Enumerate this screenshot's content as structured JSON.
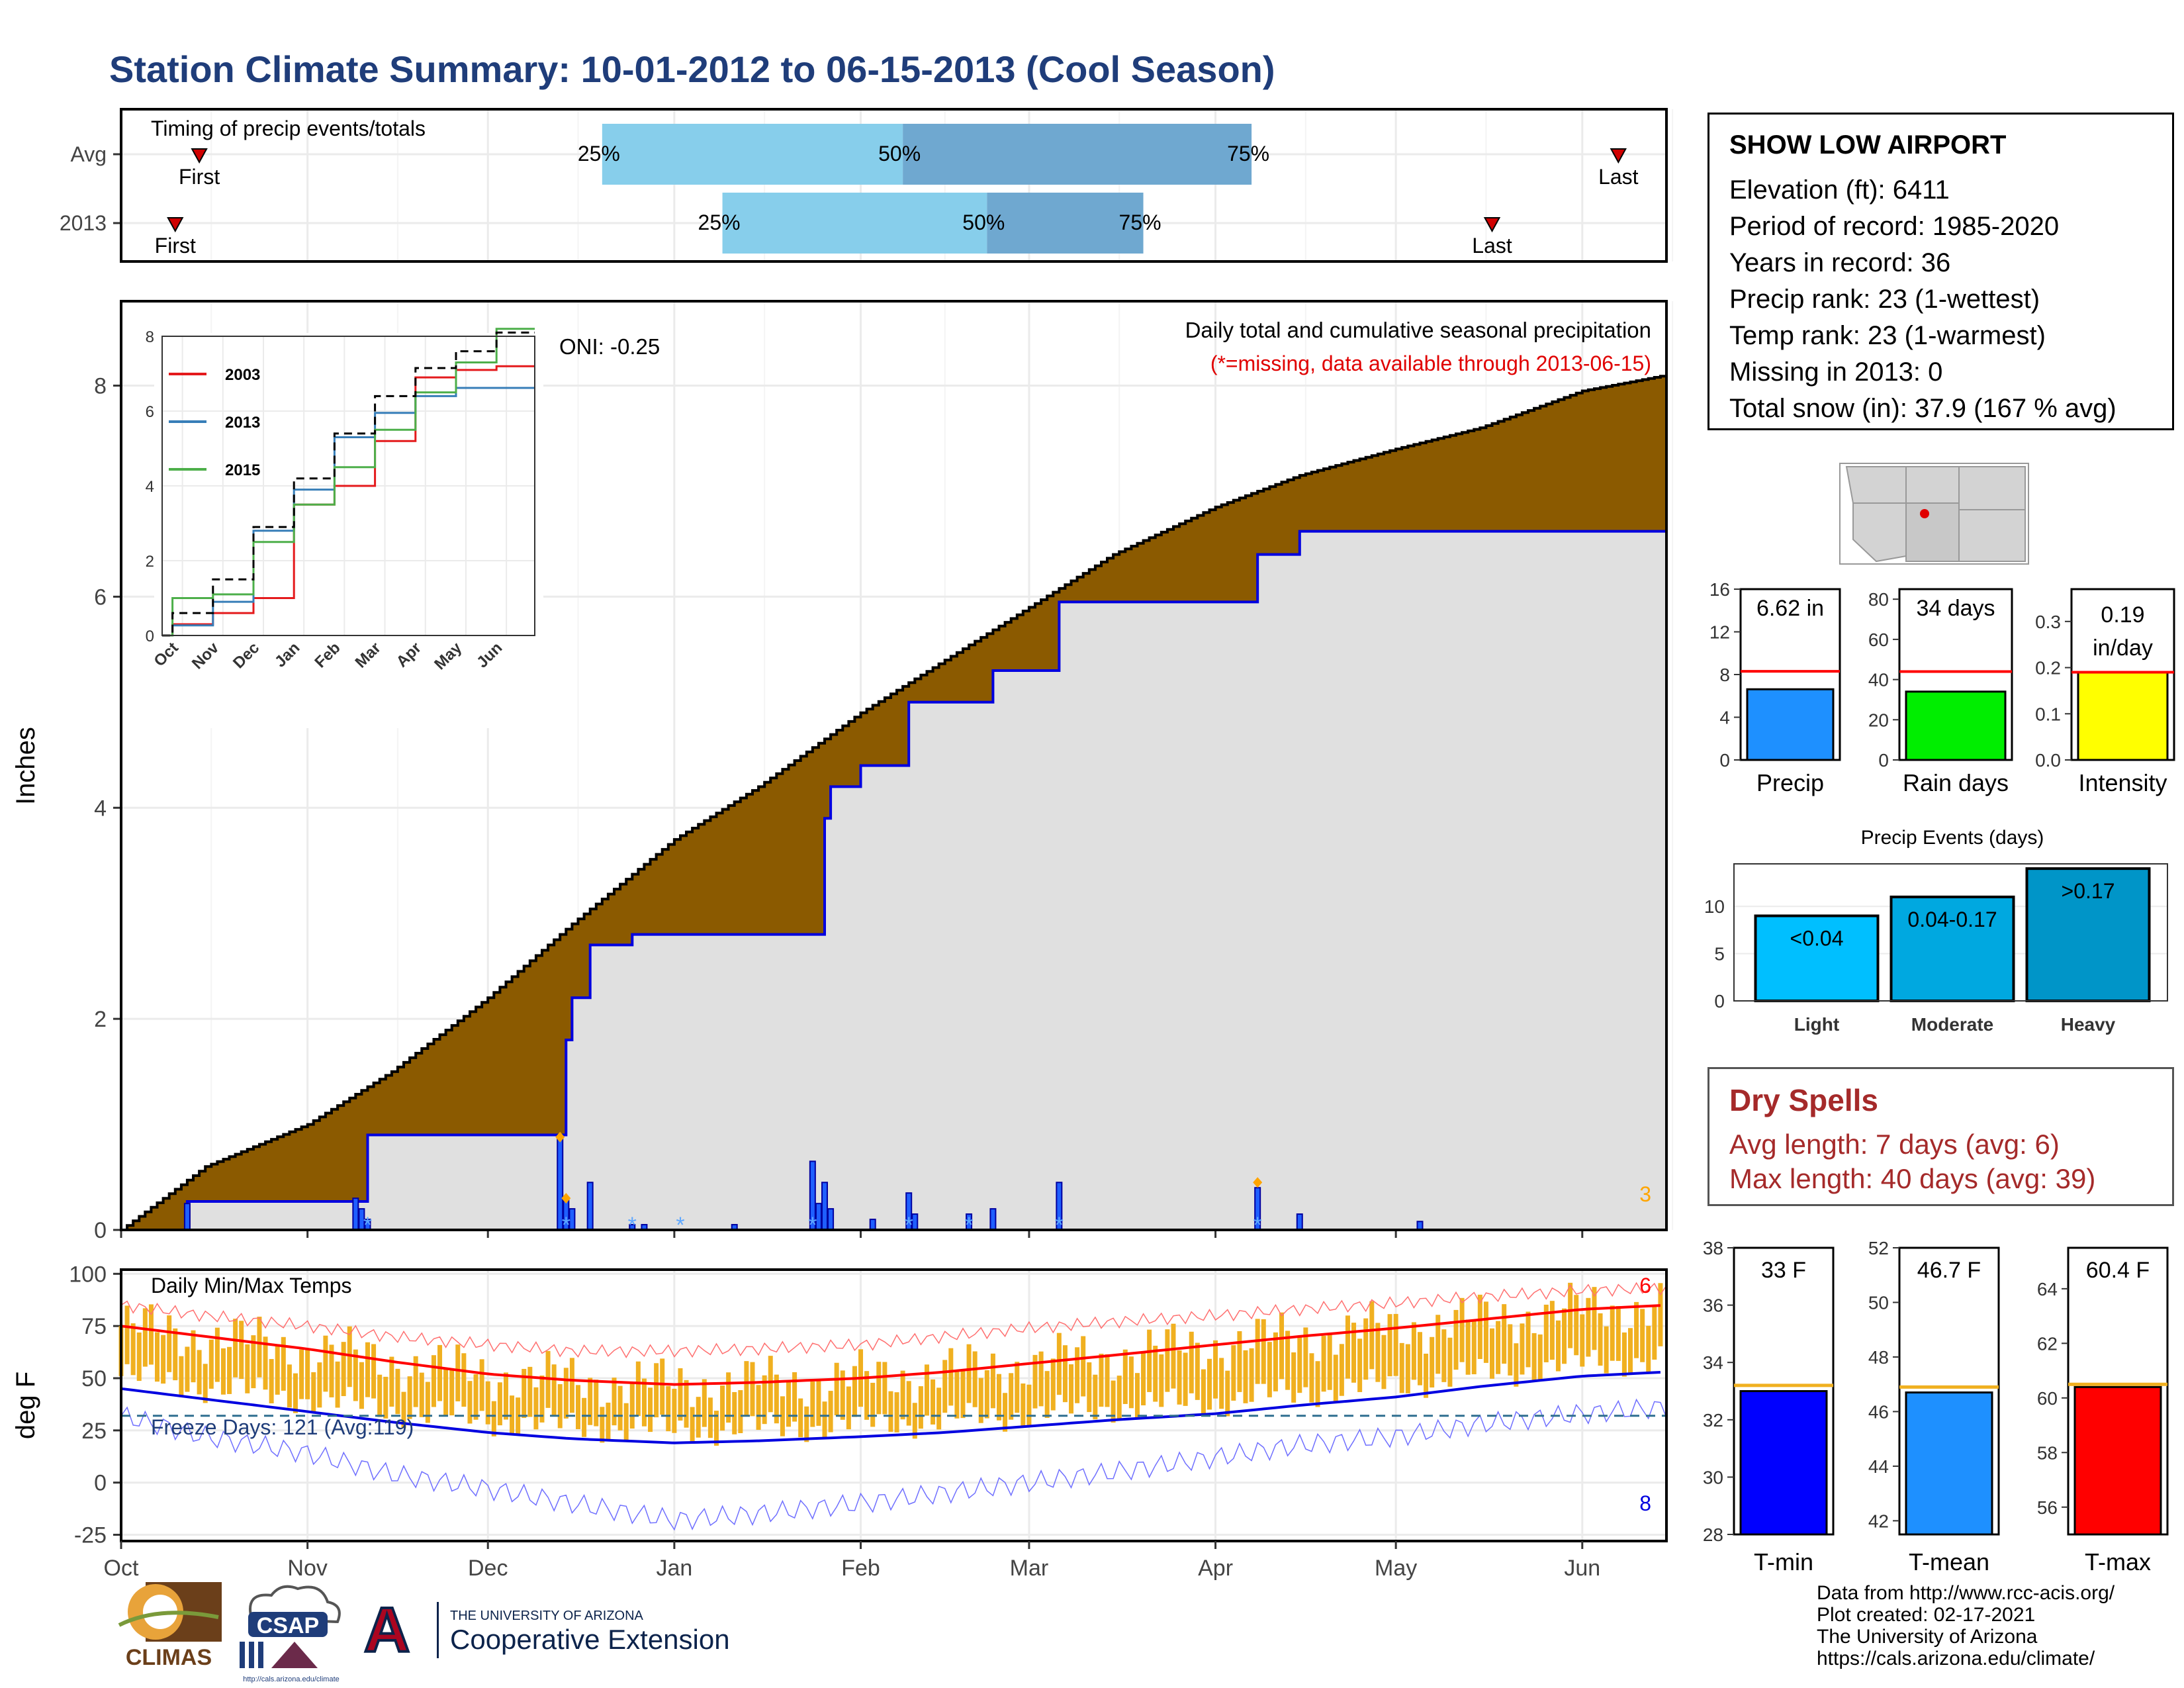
{
  "title": "Station Climate Summary: 10-01-2012 to 06-15-2013 (Cool Season)",
  "timing": {
    "label": "Timing of precip events/totals",
    "rows": [
      {
        "name": "Avg",
        "first": "First",
        "last": "Last",
        "p25": "25%",
        "p50": "50%",
        "p75": "75%"
      },
      {
        "name": "2013",
        "first": "First",
        "last": "Last",
        "p25": "25%",
        "p50": "50%",
        "p75": "75%"
      }
    ]
  },
  "station": {
    "name": "SHOW LOW AIRPORT",
    "lines": [
      "Elevation (ft): 6411",
      "Period of record: 1985-2020",
      "Years in record: 36",
      "Precip rank: 23 (1-wettest)",
      "Temp rank: 23 (1-warmest)",
      "Missing in 2013: 0",
      "Total snow (in): 37.9 (167 % avg)"
    ]
  },
  "precip_panel": {
    "ylabel": "Inches",
    "oni": "ONI: -0.25",
    "desc": "Daily total and cumulative seasonal precipitation",
    "missing_note": "(*=missing, data available through 2013-06-15)",
    "corner_count": "3",
    "inset_legend": [
      "2003",
      "2013",
      "2015"
    ],
    "inset_months": [
      "Oct",
      "Nov",
      "Dec",
      "Jan",
      "Feb",
      "Mar",
      "Apr",
      "May",
      "Jun"
    ]
  },
  "temp_panel": {
    "ylabel": "deg F",
    "title": "Daily Min/Max Temps",
    "freeze": "Freeze Days: 121 (Avg:119)",
    "count_high": "6",
    "count_low": "8"
  },
  "months": [
    "Oct",
    "Nov",
    "Dec",
    "Jan",
    "Feb",
    "Mar",
    "Apr",
    "May",
    "Jun"
  ],
  "mini_bars": [
    {
      "label": "Precip",
      "value_text": "6.62 in"
    },
    {
      "label": "Rain days",
      "value_text": "34 days"
    },
    {
      "label": "Intensity",
      "value_text": "0.19 in/day"
    }
  ],
  "events": {
    "title": "Precip Events (days)",
    "bars": [
      {
        "label": "Light",
        "range": "<0.04"
      },
      {
        "label": "Moderate",
        "range": "0.04-0.17"
      },
      {
        "label": "Heavy",
        "range": ">0.17"
      }
    ]
  },
  "dry_spells": {
    "title": "Dry Spells",
    "avg": "Avg length: 7 days (avg: 6)",
    "max": "Max length: 40 days (avg: 39)"
  },
  "temp_bars": [
    {
      "label": "T-min",
      "value_text": "33 F"
    },
    {
      "label": "T-mean",
      "value_text": "46.7 F"
    },
    {
      "label": "T-max",
      "value_text": "60.4 F"
    }
  ],
  "footer": [
    "Data from http://www.rcc-acis.org/",
    "Plot created: 02-17-2021",
    "The University of Arizona",
    "https://cals.arizona.edu/climate/"
  ],
  "logos": {
    "climas": "CLIMAS",
    "csap": "CSAP",
    "csap_url": "http://cals.arizona.edu/climate",
    "ua_letter": "A",
    "ua_top": "THE UNIVERSITY OF ARIZONA",
    "ua_bottom": "Cooperative Extension"
  },
  "chart_data": [
    {
      "type": "bar",
      "title": "Timing of precip events/totals",
      "categories": [
        "Avg",
        "2013"
      ],
      "series": [
        {
          "name": "First",
          "values": [
            "2012-10-14",
            "2012-10-10"
          ]
        },
        {
          "name": "25%",
          "values": [
            "2012-12-20",
            "2013-01-09"
          ]
        },
        {
          "name": "50%",
          "values": [
            "2013-02-08",
            "2013-02-22"
          ]
        },
        {
          "name": "75%",
          "values": [
            "2013-04-07",
            "2013-03-20"
          ]
        },
        {
          "name": "Last",
          "values": [
            "2013-06-07",
            "2013-05-17"
          ]
        }
      ]
    },
    {
      "type": "area",
      "title": "Daily total and cumulative seasonal precipitation",
      "ylabel": "Inches",
      "ylim": [
        0,
        8.8
      ],
      "avg_cumulative": {
        "x": [
          "2012-10-01",
          "2012-10-15",
          "2012-11-01",
          "2012-11-15",
          "2012-12-01",
          "2012-12-15",
          "2013-01-01",
          "2013-01-15",
          "2013-02-01",
          "2013-02-15",
          "2013-03-01",
          "2013-03-15",
          "2013-04-01",
          "2013-04-15",
          "2013-05-01",
          "2013-05-15",
          "2013-06-01",
          "2013-06-15"
        ],
        "y": [
          0,
          0.6,
          1.0,
          1.5,
          2.2,
          2.9,
          3.7,
          4.2,
          4.9,
          5.4,
          5.9,
          6.4,
          6.85,
          7.15,
          7.4,
          7.6,
          7.95,
          8.1
        ]
      },
      "obs_cumulative": {
        "x": [
          "2012-10-01",
          "2012-10-12",
          "2012-11-09",
          "2012-11-11",
          "2012-12-13",
          "2012-12-14",
          "2012-12-15",
          "2012-12-18",
          "2012-12-25",
          "2013-01-11",
          "2013-01-26",
          "2013-01-27",
          "2013-02-01",
          "2013-02-09",
          "2013-02-23",
          "2013-03-06",
          "2013-04-08",
          "2013-04-15",
          "2013-06-15"
        ],
        "y": [
          0,
          0.27,
          0.27,
          0.9,
          0.9,
          1.8,
          2.2,
          2.7,
          2.8,
          2.8,
          3.9,
          4.2,
          4.4,
          5.0,
          5.3,
          5.95,
          6.4,
          6.62,
          6.62
        ]
      },
      "daily_bars": {
        "x": [
          "2012-10-12",
          "2012-11-09",
          "2012-11-10",
          "2012-11-11",
          "2012-12-13",
          "2012-12-14",
          "2012-12-15",
          "2012-12-18",
          "2012-12-25",
          "2012-12-27",
          "2013-01-11",
          "2013-01-24",
          "2013-01-25",
          "2013-01-26",
          "2013-01-27",
          "2013-02-03",
          "2013-02-09",
          "2013-02-10",
          "2013-02-19",
          "2013-02-23",
          "2013-03-06",
          "2013-04-08",
          "2013-04-15",
          "2013-05-05"
        ],
        "y": [
          0.25,
          0.3,
          0.2,
          0.1,
          0.9,
          0.3,
          0.2,
          0.45,
          0.05,
          0.05,
          0.05,
          0.65,
          0.25,
          0.45,
          0.2,
          0.1,
          0.35,
          0.15,
          0.15,
          0.2,
          0.45,
          0.4,
          0.15,
          0.08
        ]
      },
      "inset": {
        "type": "line",
        "ylim": [
          0,
          8
        ],
        "series": [
          {
            "name": "2003",
            "values": [
              0.3,
              0.6,
              1.0,
              3.5,
              4.0,
              5.2,
              6.9,
              7.1,
              7.2
            ]
          },
          {
            "name": "2013",
            "values": [
              0.27,
              0.9,
              2.8,
              3.9,
              5.3,
              5.95,
              6.4,
              6.62,
              6.62
            ]
          },
          {
            "name": "2015",
            "values": [
              1.0,
              1.1,
              2.5,
              3.5,
              4.5,
              5.5,
              6.5,
              7.3,
              8.2
            ]
          },
          {
            "name": "avg",
            "values": [
              0.6,
              1.5,
              2.9,
              4.2,
              5.4,
              6.4,
              7.15,
              7.6,
              8.1
            ]
          }
        ]
      }
    },
    {
      "type": "line",
      "title": "Daily Min/Max Temps",
      "ylabel": "deg F",
      "ylim": [
        -28,
        102
      ],
      "x": [
        "2012-10-01",
        "2012-10-15",
        "2012-11-01",
        "2012-11-15",
        "2012-12-01",
        "2012-12-15",
        "2013-01-01",
        "2013-01-15",
        "2013-02-01",
        "2013-02-15",
        "2013-03-01",
        "2013-03-15",
        "2013-04-01",
        "2013-04-15",
        "2013-05-01",
        "2013-05-15",
        "2013-06-01",
        "2013-06-15"
      ],
      "avg_max": [
        75,
        70,
        64,
        58,
        52,
        49,
        47,
        48,
        50,
        53,
        57,
        61,
        66,
        70,
        74,
        78,
        83,
        85
      ],
      "avg_min": [
        45,
        40,
        34,
        29,
        24,
        21,
        19,
        20,
        22,
        24,
        27,
        30,
        33,
        37,
        41,
        46,
        51,
        53
      ],
      "record_high": [
        85,
        80,
        75,
        70,
        66,
        63,
        63,
        64,
        66,
        70,
        74,
        77,
        80,
        83,
        86,
        89,
        92,
        93
      ],
      "record_low": [
        32,
        22,
        14,
        4,
        -3,
        -10,
        -18,
        -15,
        -10,
        -5,
        0,
        5,
        12,
        18,
        22,
        28,
        33,
        36
      ],
      "freeze_line": 32
    },
    {
      "type": "bar",
      "categories": [
        "Precip",
        "Rain days",
        "Intensity"
      ],
      "values": [
        6.62,
        34,
        0.19
      ],
      "averages": [
        8.3,
        44,
        0.19
      ],
      "ylim": [
        [
          0,
          16
        ],
        [
          0,
          85
        ],
        [
          0,
          0.37
        ]
      ]
    },
    {
      "type": "bar",
      "title": "Precip Events (days)",
      "categories": [
        "Light",
        "Moderate",
        "Heavy"
      ],
      "labels": [
        "<0.04",
        "0.04-0.17",
        ">0.17"
      ],
      "values": [
        9,
        11,
        14
      ],
      "ylim": [
        0,
        14.5
      ]
    },
    {
      "type": "bar",
      "categories": [
        "T-min",
        "T-mean",
        "T-max"
      ],
      "values": [
        33,
        46.7,
        60.4
      ],
      "averages": [
        33.2,
        46.9,
        60.5
      ],
      "ylim": [
        [
          28,
          38
        ],
        [
          41.5,
          52
        ],
        [
          55,
          65.5
        ]
      ]
    }
  ]
}
